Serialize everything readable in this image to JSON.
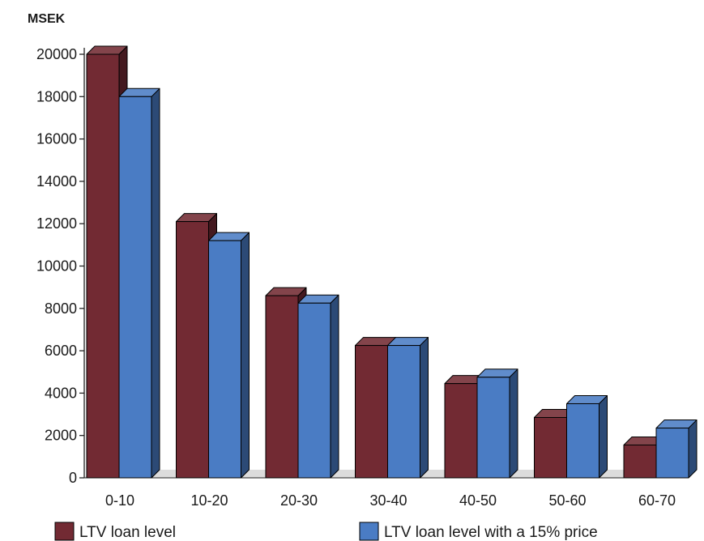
{
  "chart_data": {
    "type": "bar",
    "style": "3d-clustered-column",
    "ylabel": "MSEK",
    "xlabel": "",
    "ylim": [
      0,
      20000
    ],
    "ytick_step": 2000,
    "yticks": [
      "0",
      "2000",
      "4000",
      "6000",
      "8000",
      "10000",
      "12000",
      "14000",
      "16000",
      "18000",
      "20000"
    ],
    "categories": [
      "0-10",
      "10-20",
      "20-30",
      "30-40",
      "40-50",
      "50-60",
      "60-70"
    ],
    "series": [
      {
        "name": "LTV loan level",
        "color": "#722a33",
        "values": [
          20000,
          12100,
          8600,
          6250,
          4450,
          2850,
          1550
        ]
      },
      {
        "name": "LTV loan level with a 15% price",
        "color": "#4a7cc4",
        "values": [
          18000,
          11200,
          8250,
          6250,
          4750,
          3500,
          2350
        ]
      }
    ],
    "grid": false,
    "legend_position": "bottom"
  }
}
